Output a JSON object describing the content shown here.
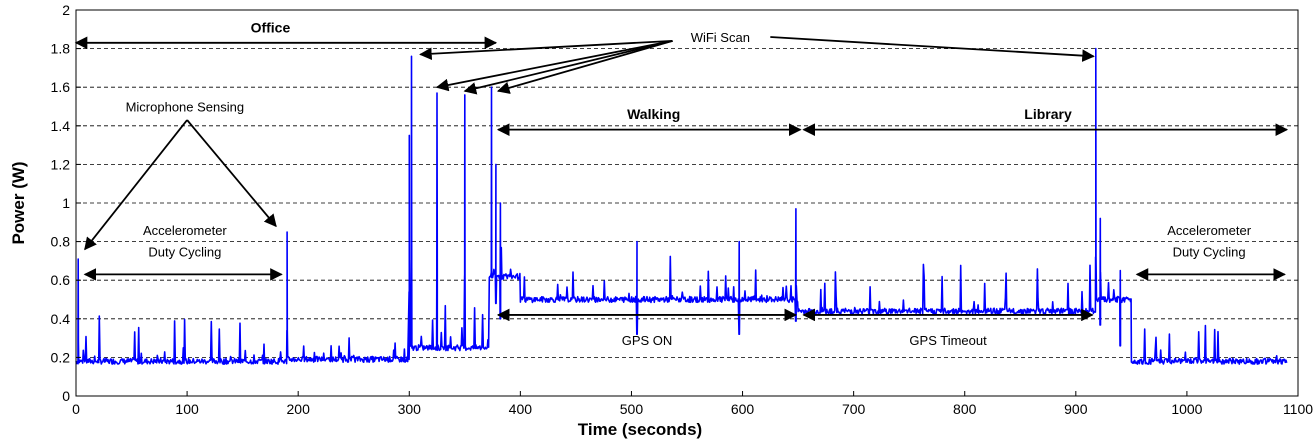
{
  "chart_data": {
    "type": "line",
    "title": "",
    "xlabel": "Time (seconds)",
    "ylabel": "Power (W)",
    "xlim": [
      0,
      1100
    ],
    "ylim": [
      0,
      2
    ],
    "xticks": [
      0,
      100,
      200,
      300,
      400,
      500,
      600,
      700,
      800,
      900,
      1000,
      1100
    ],
    "yticks": [
      0,
      0.2,
      0.4,
      0.6,
      0.8,
      1,
      1.2,
      1.4,
      1.6,
      1.8,
      2
    ],
    "ytick_labels": [
      "0",
      "0.2",
      "0.4",
      "0.6",
      "0.8",
      "1",
      "1.2",
      "1.4",
      "1.6",
      "1.8",
      "2"
    ],
    "grid": "horizontal-dashed",
    "line_color": "#0000ff",
    "segments": [
      {
        "x0": 0,
        "x1": 190,
        "baseline": 0.18
      },
      {
        "x0": 190,
        "x1": 300,
        "baseline": 0.19
      },
      {
        "x0": 300,
        "x1": 372,
        "baseline": 0.25
      },
      {
        "x0": 372,
        "x1": 400,
        "baseline": 0.62
      },
      {
        "x0": 400,
        "x1": 650,
        "baseline": 0.5
      },
      {
        "x0": 650,
        "x1": 918,
        "baseline": 0.44
      },
      {
        "x0": 918,
        "x1": 950,
        "baseline": 0.5
      },
      {
        "x0": 950,
        "x1": 1090,
        "baseline": 0.18
      }
    ],
    "spikes": [
      {
        "x": 2,
        "y": 0.71
      },
      {
        "x": 190,
        "y": 0.85
      },
      {
        "x": 300,
        "y": 1.35
      },
      {
        "x": 302,
        "y": 1.76
      },
      {
        "x": 325,
        "y": 1.57
      },
      {
        "x": 350,
        "y": 1.56
      },
      {
        "x": 374,
        "y": 1.6
      },
      {
        "x": 378,
        "y": 1.2
      },
      {
        "x": 382,
        "y": 1.0
      },
      {
        "x": 505,
        "y": 0.8
      },
      {
        "x": 597,
        "y": 0.8
      },
      {
        "x": 648,
        "y": 0.97
      },
      {
        "x": 918,
        "y": 1.8
      },
      {
        "x": 922,
        "y": 0.92
      },
      {
        "x": 940,
        "y": 0.65
      }
    ],
    "annotations": [
      {
        "id": "office",
        "text": "Office",
        "x0": 0,
        "x1": 378,
        "y": 1.83,
        "label_y": 1.91,
        "label_x": 175
      },
      {
        "id": "walking",
        "text": "Walking",
        "x0": 380,
        "x1": 652,
        "y": 1.38,
        "label_y": 1.46,
        "label_x": 520
      },
      {
        "id": "library",
        "text": "Library",
        "x0": 655,
        "x1": 1090,
        "y": 1.38,
        "label_y": 1.46,
        "label_x": 875
      },
      {
        "id": "accel-left",
        "text": [
          "Accelerometer",
          "Duty Cycling"
        ],
        "x0": 8,
        "x1": 185,
        "y": 0.63,
        "label_x": 98,
        "label_y": [
          0.86,
          0.75
        ]
      },
      {
        "id": "accel-right",
        "text": [
          "Accelerometer",
          "Duty Cycling"
        ],
        "x0": 955,
        "x1": 1088,
        "y": 0.63,
        "label_x": 1020,
        "label_y": [
          0.86,
          0.75
        ]
      },
      {
        "id": "gps-on",
        "text": "GPS ON",
        "x0": 380,
        "x1": 648,
        "y": 0.42,
        "label_x": 514,
        "label_y": 0.29
      },
      {
        "id": "gps-timeout",
        "text": "GPS Timeout",
        "x0": 655,
        "x1": 915,
        "y": 0.42,
        "label_x": 785,
        "label_y": 0.29
      },
      {
        "id": "mic",
        "text": "Microphone Sensing",
        "label_x": 98,
        "label_y": 1.5
      },
      {
        "id": "wifi",
        "text": "WiFi Scan",
        "label_x": 580,
        "label_y": 1.86
      }
    ]
  }
}
